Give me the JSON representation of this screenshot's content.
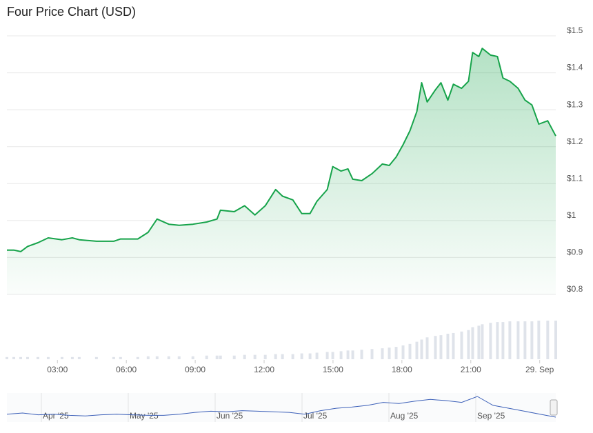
{
  "chart_data": {
    "type": "line",
    "title": "Four Price Chart (USD)",
    "color": "#16a34a",
    "grid": true,
    "x": [
      0.8,
      1.1,
      1.4,
      1.7,
      2.15,
      2.6,
      3.2,
      3.65,
      3.95,
      4.7,
      5.45,
      5.75,
      6.5,
      6.95,
      7.34,
      7.85,
      8.3,
      8.9,
      9.5,
      9.95,
      10.1,
      10.7,
      11.15,
      11.6,
      12.05,
      12.5,
      12.8,
      13.25,
      13.64,
      14.0,
      14.3,
      14.75,
      14.99,
      15.35,
      15.65,
      15.86,
      16.25,
      16.7,
      17.15,
      17.45,
      17.75,
      18.05,
      18.35,
      18.65,
      18.86,
      19.1,
      19.46,
      19.7,
      20.0,
      20.24,
      20.6,
      20.9,
      21.08,
      21.35,
      21.5,
      21.86,
      22.16,
      22.4,
      22.7,
      23.06,
      23.36,
      23.66,
      23.96,
      24.35,
      24.7
    ],
    "values": [
      0.92,
      0.92,
      0.916,
      0.93,
      0.94,
      0.953,
      0.948,
      0.953,
      0.948,
      0.944,
      0.944,
      0.95,
      0.95,
      0.968,
      1.004,
      0.99,
      0.987,
      0.99,
      0.996,
      1.004,
      1.028,
      1.024,
      1.04,
      1.015,
      1.04,
      1.084,
      1.066,
      1.056,
      1.019,
      1.019,
      1.052,
      1.084,
      1.146,
      1.134,
      1.14,
      1.112,
      1.108,
      1.127,
      1.153,
      1.149,
      1.172,
      1.205,
      1.243,
      1.295,
      1.373,
      1.321,
      1.354,
      1.373,
      1.326,
      1.369,
      1.358,
      1.377,
      1.455,
      1.444,
      1.466,
      1.448,
      1.444,
      1.386,
      1.377,
      1.358,
      1.326,
      1.313,
      1.261,
      1.27,
      1.229
    ],
    "volume": [
      3,
      3,
      3,
      3,
      3,
      3,
      3,
      3,
      3,
      3,
      3,
      3,
      3,
      4,
      4,
      4,
      4,
      4,
      5,
      5,
      5,
      5,
      6,
      6,
      6,
      7,
      7,
      7,
      8,
      8,
      9,
      10,
      10,
      11,
      12,
      12,
      13,
      14,
      15,
      16,
      17,
      19,
      21,
      24,
      27,
      30,
      32,
      33,
      35,
      36,
      38,
      40,
      44,
      46,
      48,
      50,
      51,
      51,
      52,
      52,
      52,
      52,
      53,
      53,
      53
    ],
    "xlim": [
      0.8,
      24.7
    ],
    "ylim": [
      0.8,
      1.5
    ],
    "xticks": [
      {
        "value": 3,
        "label": "03:00"
      },
      {
        "value": 6,
        "label": "06:00"
      },
      {
        "value": 9,
        "label": "09:00"
      },
      {
        "value": 12,
        "label": "12:00"
      },
      {
        "value": 15,
        "label": "15:00"
      },
      {
        "value": 18,
        "label": "18:00"
      },
      {
        "value": 21,
        "label": "21:00"
      },
      {
        "value": 24,
        "label": "29. Sep"
      }
    ],
    "yticks": [
      {
        "value": 1.5,
        "label": "$1.5"
      },
      {
        "value": 1.4,
        "label": "$1.4"
      },
      {
        "value": 1.3,
        "label": "$1.3"
      },
      {
        "value": 1.2,
        "label": "$1.2"
      },
      {
        "value": 1.1,
        "label": "$1.1"
      },
      {
        "value": 1,
        "label": "$1"
      },
      {
        "value": 0.9,
        "label": "$0.9"
      },
      {
        "value": 0.8,
        "label": "$0.8"
      }
    ],
    "navigator": {
      "categories": [
        "Apr '25",
        "May '25",
        "Jun '25",
        "Jul '25",
        "Aug '25",
        "Sep '25"
      ],
      "values": [
        0.8,
        0.82,
        0.79,
        0.8,
        0.78,
        0.77,
        0.79,
        0.8,
        0.79,
        0.78,
        0.78,
        0.8,
        0.83,
        0.85,
        0.84,
        0.86,
        0.85,
        0.84,
        0.83,
        0.8,
        0.86,
        0.9,
        0.92,
        0.95,
        1.0,
        0.98,
        1.02,
        1.05,
        1.03,
        1.0,
        1.1,
        0.95,
        0.9,
        0.85,
        0.8,
        0.75
      ]
    }
  }
}
